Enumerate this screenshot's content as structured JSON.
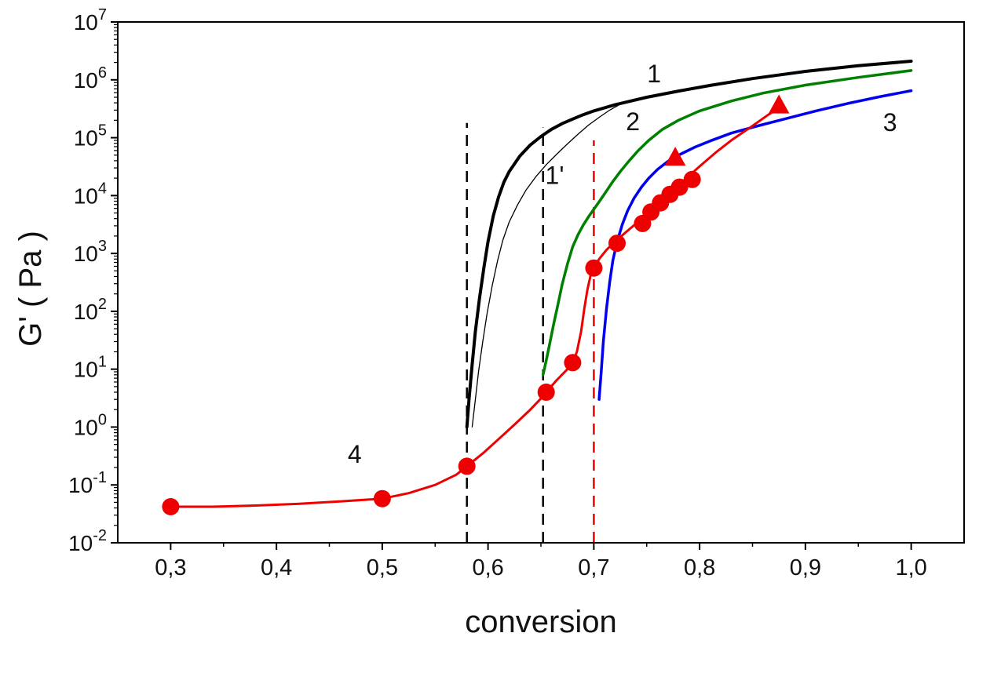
{
  "chart_data": {
    "type": "line",
    "title": "",
    "xlabel": "conversion",
    "ylabel": "G' ( Pa )",
    "grid": false,
    "legend": "none",
    "x_axis": {
      "min": 0.25,
      "max": 1.05,
      "decimal_separator": ",",
      "minor_step": 0.05,
      "major_ticks": [
        {
          "value": 0.3,
          "label": "0,3"
        },
        {
          "value": 0.4,
          "label": "0,4"
        },
        {
          "value": 0.5,
          "label": "0,5"
        },
        {
          "value": 0.6,
          "label": "0,6"
        },
        {
          "value": 0.7,
          "label": "0,7"
        },
        {
          "value": 0.8,
          "label": "0,8"
        },
        {
          "value": 0.9,
          "label": "0,9"
        },
        {
          "value": 1.0,
          "label": "1,0"
        }
      ]
    },
    "y_axis": {
      "scale": "log",
      "min_exp": -2,
      "max_exp": 7,
      "tick_label_base": "10",
      "tick_exponents": [
        7,
        6,
        5,
        4,
        3,
        2,
        1,
        0,
        -1,
        -2
      ]
    },
    "series": [
      {
        "name": "1",
        "color": "#000000",
        "width": 4,
        "points": [
          [
            0.58,
            1.0
          ],
          [
            0.582,
            3
          ],
          [
            0.585,
            12
          ],
          [
            0.588,
            45
          ],
          [
            0.592,
            170
          ],
          [
            0.596,
            550
          ],
          [
            0.6,
            1600
          ],
          [
            0.605,
            4500
          ],
          [
            0.61,
            9500
          ],
          [
            0.615,
            17000
          ],
          [
            0.62,
            26000
          ],
          [
            0.63,
            48000
          ],
          [
            0.64,
            75000
          ],
          [
            0.65,
            105000
          ],
          [
            0.66,
            140000
          ],
          [
            0.67,
            175000
          ],
          [
            0.68,
            210000
          ],
          [
            0.69,
            250000
          ],
          [
            0.7,
            290000
          ],
          [
            0.72,
            370000
          ],
          [
            0.75,
            500000
          ],
          [
            0.78,
            640000
          ],
          [
            0.81,
            800000
          ],
          [
            0.85,
            1050000
          ],
          [
            0.9,
            1400000
          ],
          [
            0.95,
            1750000
          ],
          [
            1.0,
            2100000
          ]
        ]
      },
      {
        "name": "1'",
        "color": "#000000",
        "width": 1.3,
        "points": [
          [
            0.585,
            1.0
          ],
          [
            0.588,
            3
          ],
          [
            0.591,
            9
          ],
          [
            0.595,
            30
          ],
          [
            0.599,
            90
          ],
          [
            0.604,
            280
          ],
          [
            0.609,
            750
          ],
          [
            0.614,
            1700
          ],
          [
            0.62,
            3500
          ],
          [
            0.628,
            7000
          ],
          [
            0.636,
            12500
          ],
          [
            0.645,
            21000
          ],
          [
            0.655,
            34000
          ],
          [
            0.665,
            52000
          ],
          [
            0.675,
            78000
          ],
          [
            0.685,
            115000
          ],
          [
            0.695,
            165000
          ],
          [
            0.705,
            225000
          ],
          [
            0.715,
            300000
          ],
          [
            0.725,
            380000
          ]
        ]
      },
      {
        "name": "2",
        "color": "#008000",
        "width": 3.5,
        "points": [
          [
            0.652,
            8
          ],
          [
            0.655,
            14
          ],
          [
            0.658,
            26
          ],
          [
            0.662,
            60
          ],
          [
            0.666,
            130
          ],
          [
            0.67,
            290
          ],
          [
            0.675,
            650
          ],
          [
            0.68,
            1300
          ],
          [
            0.685,
            2100
          ],
          [
            0.69,
            3100
          ],
          [
            0.695,
            4300
          ],
          [
            0.7,
            5800
          ],
          [
            0.706,
            8300
          ],
          [
            0.712,
            12000
          ],
          [
            0.718,
            17500
          ],
          [
            0.725,
            26000
          ],
          [
            0.733,
            39000
          ],
          [
            0.742,
            60000
          ],
          [
            0.752,
            90000
          ],
          [
            0.765,
            140000
          ],
          [
            0.78,
            200000
          ],
          [
            0.8,
            290000
          ],
          [
            0.83,
            430000
          ],
          [
            0.86,
            590000
          ],
          [
            0.9,
            810000
          ],
          [
            0.95,
            1100000
          ],
          [
            1.0,
            1450000
          ]
        ]
      },
      {
        "name": "3",
        "color": "#0000ee",
        "width": 3.5,
        "points": [
          [
            0.705,
            3
          ],
          [
            0.707,
            9
          ],
          [
            0.709,
            30
          ],
          [
            0.712,
            110
          ],
          [
            0.715,
            320
          ],
          [
            0.718,
            750
          ],
          [
            0.722,
            1600
          ],
          [
            0.727,
            3200
          ],
          [
            0.732,
            5500
          ],
          [
            0.738,
            9000
          ],
          [
            0.745,
            14000
          ],
          [
            0.752,
            20000
          ],
          [
            0.76,
            28000
          ],
          [
            0.77,
            39000
          ],
          [
            0.782,
            52000
          ],
          [
            0.795,
            68000
          ],
          [
            0.81,
            88000
          ],
          [
            0.83,
            120000
          ],
          [
            0.855,
            160000
          ],
          [
            0.88,
            210000
          ],
          [
            0.91,
            290000
          ],
          [
            0.94,
            390000
          ],
          [
            0.97,
            510000
          ],
          [
            1.0,
            650000
          ]
        ]
      },
      {
        "name": "4",
        "color": "#ee0000",
        "width": 3,
        "points": [
          [
            0.3,
            0.042
          ],
          [
            0.34,
            0.042
          ],
          [
            0.38,
            0.044
          ],
          [
            0.42,
            0.047
          ],
          [
            0.46,
            0.052
          ],
          [
            0.5,
            0.058
          ],
          [
            0.525,
            0.072
          ],
          [
            0.55,
            0.1
          ],
          [
            0.57,
            0.15
          ],
          [
            0.58,
            0.21
          ],
          [
            0.595,
            0.35
          ],
          [
            0.61,
            0.62
          ],
          [
            0.625,
            1.1
          ],
          [
            0.64,
            2.0
          ],
          [
            0.652,
            3.4
          ],
          [
            0.655,
            4.0
          ],
          [
            0.665,
            6.5
          ],
          [
            0.675,
            10
          ],
          [
            0.68,
            13
          ],
          [
            0.684,
            20
          ],
          [
            0.688,
            45
          ],
          [
            0.691,
            110
          ],
          [
            0.694,
            240
          ],
          [
            0.697,
            420
          ],
          [
            0.7,
            560
          ],
          [
            0.705,
            800
          ],
          [
            0.712,
            1150
          ],
          [
            0.72,
            1600
          ],
          [
            0.73,
            2300
          ],
          [
            0.74,
            3300
          ],
          [
            0.75,
            4700
          ],
          [
            0.76,
            6800
          ],
          [
            0.77,
            9800
          ],
          [
            0.78,
            15000
          ],
          [
            0.79,
            22000
          ],
          [
            0.8,
            32000
          ],
          [
            0.815,
            55000
          ],
          [
            0.83,
            90000
          ],
          [
            0.85,
            160000
          ],
          [
            0.865,
            250000
          ],
          [
            0.878,
            360000
          ]
        ]
      }
    ],
    "scatter": [
      {
        "name": "experimental-circles",
        "marker": "circle",
        "color": "#ee0000",
        "size": 11,
        "points": [
          [
            0.3,
            0.042
          ],
          [
            0.5,
            0.058
          ],
          [
            0.58,
            0.21
          ],
          [
            0.655,
            4.0
          ],
          [
            0.68,
            13
          ],
          [
            0.7,
            560
          ],
          [
            0.722,
            1500
          ],
          [
            0.746,
            3300
          ],
          [
            0.754,
            5200
          ],
          [
            0.763,
            7500
          ],
          [
            0.772,
            10500
          ],
          [
            0.781,
            14000
          ],
          [
            0.793,
            19000
          ]
        ]
      },
      {
        "name": "experimental-triangles",
        "marker": "triangle",
        "color": "#ee0000",
        "size": 14,
        "points": [
          [
            0.777,
            45000
          ],
          [
            0.875,
            360000
          ]
        ]
      }
    ],
    "vlines": [
      {
        "x": 0.58,
        "color": "#000000",
        "y_from": 0.01,
        "y_to": 180000
      },
      {
        "x": 0.652,
        "color": "#000000",
        "y_from": 0.01,
        "y_to": 150000
      },
      {
        "x": 0.7,
        "color": "#ee0000",
        "y_from": 0.01,
        "y_to": 90000
      }
    ],
    "annotations": [
      {
        "text": "1",
        "x": 0.757,
        "y": 900000
      },
      {
        "text": "2",
        "x": 0.737,
        "y": 135000
      },
      {
        "text": "1'",
        "x": 0.663,
        "y": 16000
      },
      {
        "text": "3",
        "x": 0.98,
        "y": 130000
      },
      {
        "text": "4",
        "x": 0.474,
        "y": 0.24
      }
    ]
  }
}
